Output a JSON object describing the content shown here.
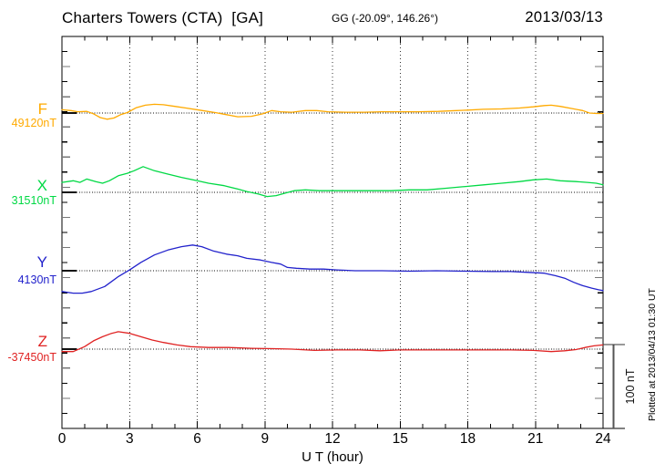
{
  "header": {
    "station": "Charters Towers (CTA)  [GA]",
    "geographic": "GG (-20.09°, 146.26°)",
    "date": "2013/03/13"
  },
  "footer": {
    "plotted_note": "Plotted at 2013/04/13 01:30 UT"
  },
  "chart_data": {
    "type": "line",
    "title": "Charters Towers (CTA)  [GA]",
    "subtitle": "GG (-20.09°, 146.26°)",
    "date": "2013/03/13",
    "xlabel": "U T (hour)",
    "ylabel": "",
    "y_unit": "nT",
    "x_range": [
      0,
      24
    ],
    "x_major_ticks": [
      0,
      3,
      6,
      9,
      12,
      15,
      18,
      21,
      24
    ],
    "x_minor_tick_step_hours": 1,
    "grid": "dotted vertical lines every 3 hours; dotted horizontal baseline for each component",
    "legend_position": "left margin (component letter + baseline value)",
    "scale_bar": {
      "label": "100 nT",
      "nT": 100
    },
    "points_format": "[UT hour, offset from base value in nT]",
    "series": [
      {
        "name": "F",
        "base_label": "49120nT",
        "base_value_nT": 49120,
        "color": "#ffaa00",
        "points": [
          [
            0,
            4
          ],
          [
            0.4,
            3
          ],
          [
            0.7,
            1.5
          ],
          [
            1.1,
            2
          ],
          [
            1.4,
            -1
          ],
          [
            1.7,
            -5.5
          ],
          [
            2.0,
            -7.5
          ],
          [
            2.3,
            -6
          ],
          [
            2.6,
            -2
          ],
          [
            2.9,
            0.5
          ],
          [
            3.3,
            6.5
          ],
          [
            3.7,
            9.5
          ],
          [
            4.1,
            10.5
          ],
          [
            4.5,
            10
          ],
          [
            5.0,
            8
          ],
          [
            5.5,
            6
          ],
          [
            6.1,
            3.5
          ],
          [
            6.8,
            0.5
          ],
          [
            7.3,
            -2
          ],
          [
            7.8,
            -4.5
          ],
          [
            8.4,
            -4
          ],
          [
            8.9,
            -1
          ],
          [
            9.3,
            3
          ],
          [
            9.7,
            1.5
          ],
          [
            10.2,
            1
          ],
          [
            10.8,
            3
          ],
          [
            11.3,
            3
          ],
          [
            11.8,
            1.5
          ],
          [
            12.6,
            1
          ],
          [
            13.4,
            1
          ],
          [
            14.2,
            1.5
          ],
          [
            15.0,
            1.5
          ],
          [
            15.8,
            1.5
          ],
          [
            16.7,
            2
          ],
          [
            17.5,
            3
          ],
          [
            18.0,
            3.5
          ],
          [
            18.7,
            4.5
          ],
          [
            19.5,
            5
          ],
          [
            20.3,
            6
          ],
          [
            20.9,
            7.5
          ],
          [
            21.4,
            9
          ],
          [
            21.7,
            9.5
          ],
          [
            22.1,
            8
          ],
          [
            22.6,
            5.5
          ],
          [
            23.1,
            3
          ],
          [
            23.4,
            0
          ],
          [
            23.7,
            -0.5
          ],
          [
            24,
            -0.5
          ]
        ]
      },
      {
        "name": "X",
        "base_label": "31510nT",
        "base_value_nT": 31510,
        "color": "#00d944",
        "points": [
          [
            0,
            12
          ],
          [
            0.5,
            14
          ],
          [
            0.8,
            12
          ],
          [
            1.1,
            16
          ],
          [
            1.5,
            13
          ],
          [
            1.8,
            11
          ],
          [
            2.1,
            14
          ],
          [
            2.5,
            20
          ],
          [
            2.9,
            23
          ],
          [
            3.2,
            26
          ],
          [
            3.6,
            31
          ],
          [
            4.1,
            26
          ],
          [
            4.7,
            22
          ],
          [
            5.3,
            18
          ],
          [
            6.0,
            14
          ],
          [
            6.5,
            11
          ],
          [
            7.2,
            8
          ],
          [
            7.8,
            4
          ],
          [
            8.2,
            1
          ],
          [
            8.7,
            -2
          ],
          [
            9.1,
            -5
          ],
          [
            9.5,
            -4
          ],
          [
            9.9,
            -1
          ],
          [
            10.3,
            2
          ],
          [
            10.8,
            3
          ],
          [
            11.4,
            2
          ],
          [
            12.2,
            2
          ],
          [
            13.0,
            2
          ],
          [
            13.8,
            2
          ],
          [
            14.6,
            2
          ],
          [
            15.4,
            3
          ],
          [
            16.2,
            3
          ],
          [
            17.1,
            5
          ],
          [
            17.9,
            7
          ],
          [
            18.7,
            9
          ],
          [
            19.5,
            11
          ],
          [
            20.3,
            13
          ],
          [
            20.9,
            15
          ],
          [
            21.5,
            16
          ],
          [
            22.1,
            14
          ],
          [
            22.8,
            13
          ],
          [
            23.3,
            12
          ],
          [
            23.7,
            11
          ],
          [
            24,
            9
          ]
        ]
      },
      {
        "name": "Y",
        "base_label": "4130nT",
        "base_value_nT": 4130,
        "color": "#2222cc",
        "points": [
          [
            0,
            -25
          ],
          [
            0.5,
            -27
          ],
          [
            0.9,
            -27
          ],
          [
            1.3,
            -25
          ],
          [
            1.9,
            -19
          ],
          [
            2.5,
            -7
          ],
          [
            3.0,
            1
          ],
          [
            3.5,
            10
          ],
          [
            4.1,
            19
          ],
          [
            4.7,
            25
          ],
          [
            5.3,
            29
          ],
          [
            5.8,
            31
          ],
          [
            6.2,
            29
          ],
          [
            6.7,
            24
          ],
          [
            7.3,
            20
          ],
          [
            7.8,
            18
          ],
          [
            8.2,
            15
          ],
          [
            8.8,
            13
          ],
          [
            9.3,
            10
          ],
          [
            9.7,
            8
          ],
          [
            10.0,
            4
          ],
          [
            10.4,
            3
          ],
          [
            11.0,
            2
          ],
          [
            11.6,
            2
          ],
          [
            12.2,
            1
          ],
          [
            13.0,
            0
          ],
          [
            14.2,
            0
          ],
          [
            15.4,
            -0.5
          ],
          [
            16.6,
            0
          ],
          [
            17.9,
            -0.5
          ],
          [
            19.1,
            -1
          ],
          [
            19.9,
            -1
          ],
          [
            20.7,
            -2
          ],
          [
            21.4,
            -3
          ],
          [
            21.9,
            -6
          ],
          [
            22.3,
            -9
          ],
          [
            22.7,
            -14
          ],
          [
            23.1,
            -18
          ],
          [
            23.5,
            -21
          ],
          [
            23.8,
            -23
          ],
          [
            24,
            -24
          ]
        ]
      },
      {
        "name": "Z",
        "base_label": "-37450nT",
        "base_value_nT": -37450,
        "color": "#e02222",
        "points": [
          [
            0,
            -3
          ],
          [
            0.5,
            -3
          ],
          [
            1.0,
            3
          ],
          [
            1.4,
            10
          ],
          [
            1.8,
            15
          ],
          [
            2.2,
            19
          ],
          [
            2.5,
            21
          ],
          [
            3.0,
            19
          ],
          [
            3.5,
            15
          ],
          [
            4.0,
            11
          ],
          [
            4.5,
            8
          ],
          [
            5.1,
            5
          ],
          [
            5.7,
            3
          ],
          [
            6.5,
            2
          ],
          [
            7.4,
            2
          ],
          [
            8.4,
            1
          ],
          [
            9.4,
            0.5
          ],
          [
            10.2,
            0
          ],
          [
            11.2,
            -1.5
          ],
          [
            12.2,
            -1
          ],
          [
            13.2,
            -1
          ],
          [
            14.1,
            -2
          ],
          [
            15.0,
            -1
          ],
          [
            16.2,
            -1
          ],
          [
            17.5,
            -1
          ],
          [
            18.7,
            -1
          ],
          [
            19.9,
            -1
          ],
          [
            20.9,
            -1.5
          ],
          [
            21.7,
            -3
          ],
          [
            22.3,
            -2
          ],
          [
            22.8,
            -0.5
          ],
          [
            23.2,
            2
          ],
          [
            23.6,
            4
          ],
          [
            24,
            5
          ]
        ]
      }
    ]
  }
}
